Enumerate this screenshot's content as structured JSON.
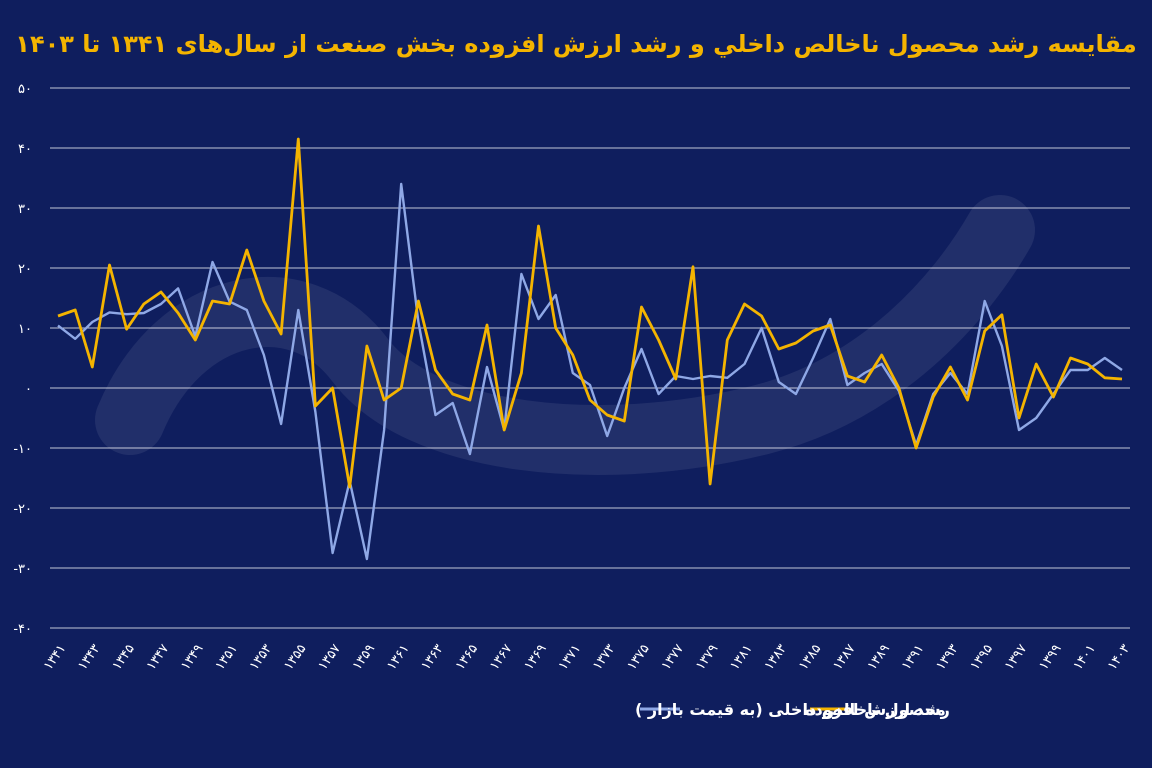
{
  "colors": {
    "background": "#0f1e5e",
    "gdp_line": "#8fa8e6",
    "value_added_line": "#f4b400",
    "title": "#f4b400",
    "grid": "#ffffff",
    "text": "#ffffff"
  },
  "chart_data": {
    "type": "line",
    "title": "مقایسه رشد محصول ناخالص داخلي و رشد ارزش افزوده بخش صنعت از سال‌های ۱۳۴۱ تا ۱۴۰۳",
    "xlabel": "",
    "ylabel": "",
    "ylim": [
      -40,
      50
    ],
    "yticks": [
      50,
      40,
      30,
      20,
      10,
      0,
      -10,
      -20,
      -30,
      -40
    ],
    "ytick_labels": [
      "۵۰",
      "۴۰",
      "۳۰",
      "۲۰",
      "۱۰",
      "۰",
      "-۱۰",
      "-۲۰",
      "-۳۰",
      "-۴۰"
    ],
    "grid": true,
    "legend_position": "bottom-center",
    "categories": [
      "۱۳۴۱",
      "۱۳۴۲",
      "۱۳۴۳",
      "۱۳۴۴",
      "۱۳۴۵",
      "۱۳۴۶",
      "۱۳۴۷",
      "۱۳۴۸",
      "۱۳۴۹",
      "۱۳۵۰",
      "۱۳۵۱",
      "۱۳۵۲",
      "۱۳۵۳",
      "۱۳۵۴",
      "۱۳۵۵",
      "۱۳۵۶",
      "۱۳۵۷",
      "۱۳۵۸",
      "۱۳۵۹",
      "۱۳۶۰",
      "۱۳۶۱",
      "۱۳۶۲",
      "۱۳۶۳",
      "۱۳۶۴",
      "۱۳۶۵",
      "۱۳۶۶",
      "۱۳۶۷",
      "۱۳۶۸",
      "۱۳۶۹",
      "۱۳۷۰",
      "۱۳۷۱",
      "۱۳۷۲",
      "۱۳۷۳",
      "۱۳۷۴",
      "۱۳۷۵",
      "۱۳۷۶",
      "۱۳۷۷",
      "۱۳۷۸",
      "۱۳۷۹",
      "۱۳۸۰",
      "۱۳۸۱",
      "۱۳۸۲",
      "۱۳۸۳",
      "۱۳۸۴",
      "۱۳۸۵",
      "۱۳۸۶",
      "۱۳۸۷",
      "۱۳۸۸",
      "۱۳۸۹",
      "۱۳۹۰",
      "۱۳۹۱",
      "۱۳۹۲",
      "۱۳۹۳",
      "۱۳۹۴",
      "۱۳۹۵",
      "۱۳۹۶",
      "۱۳۹۷",
      "۱۳۹۸",
      "۱۳۹۹",
      "۱۴۰۰",
      "۱۴۰۱",
      "۱۴۰۲",
      "۱۴۰۳"
    ],
    "xtick_labels": [
      "۱۳۴۱",
      "۱۳۴۳",
      "۱۳۴۵",
      "۱۳۴۷",
      "۱۳۴۹",
      "۱۳۵۱",
      "۱۳۵۳",
      "۱۳۵۵",
      "۱۳۵۷",
      "۱۳۵۹",
      "۱۳۶۱",
      "۱۳۶۳",
      "۱۳۶۵",
      "۱۳۶۷",
      "۱۳۶۹",
      "۱۳۷۱",
      "۱۳۷۳",
      "۱۳۷۵",
      "۱۳۷۷",
      "۱۳۷۹",
      "۱۳۸۱",
      "۱۳۸۳",
      "۱۳۸۵",
      "۱۳۸۷",
      "۱۳۸۹",
      "۱۳۹۱",
      "۱۳۹۳",
      "۱۳۹۵",
      "۱۳۹۷",
      "۱۳۹۹",
      "۱۴۰۱",
      "۱۴۰۳"
    ],
    "series": [
      {
        "name": "محصول ناخالص داخلی (به قیمت بازار )",
        "color": "#8fa8e6",
        "values": [
          10.4,
          8.2,
          11,
          12.6,
          12.3,
          12.5,
          14,
          16.6,
          8.6,
          21,
          14.4,
          13,
          5.5,
          -6,
          13,
          -4,
          -27.5,
          -15.5,
          -28.5,
          -7,
          34,
          11,
          -4.5,
          -2.5,
          -11,
          3.5,
          -7,
          19,
          11.5,
          15.5,
          2.5,
          0.5,
          -8,
          0,
          6.5,
          -1,
          2,
          1.5,
          2,
          1.7,
          4,
          10,
          1,
          -1,
          5,
          11.5,
          0.5,
          2.5,
          4,
          -0.5,
          -9.5,
          -1,
          2.5,
          -1,
          14.5,
          7,
          -7,
          -5,
          -1,
          3,
          3,
          5,
          3
        ]
      },
      {
        "name": "رشد ارزش افزوده",
        "color": "#f4b400",
        "values": [
          12,
          13,
          3.5,
          20.5,
          9.8,
          14,
          16,
          12.5,
          8,
          14.5,
          14,
          23,
          14.5,
          9,
          41.5,
          -3,
          0,
          -16.5,
          7,
          -2,
          0,
          14.5,
          3,
          -1,
          -2,
          10.5,
          -7,
          2.5,
          27,
          10,
          5.5,
          -2,
          -4.5,
          -5.5,
          13.5,
          8,
          1.5,
          20.2,
          -16,
          8,
          14,
          12,
          6.5,
          7.5,
          9.5,
          10.5,
          2,
          1,
          5.5,
          0,
          -10,
          -1.5,
          3.5,
          -2,
          9.5,
          12.2,
          -5,
          4,
          -1.5,
          5,
          4,
          1.7,
          1.5
        ]
      }
    ]
  }
}
